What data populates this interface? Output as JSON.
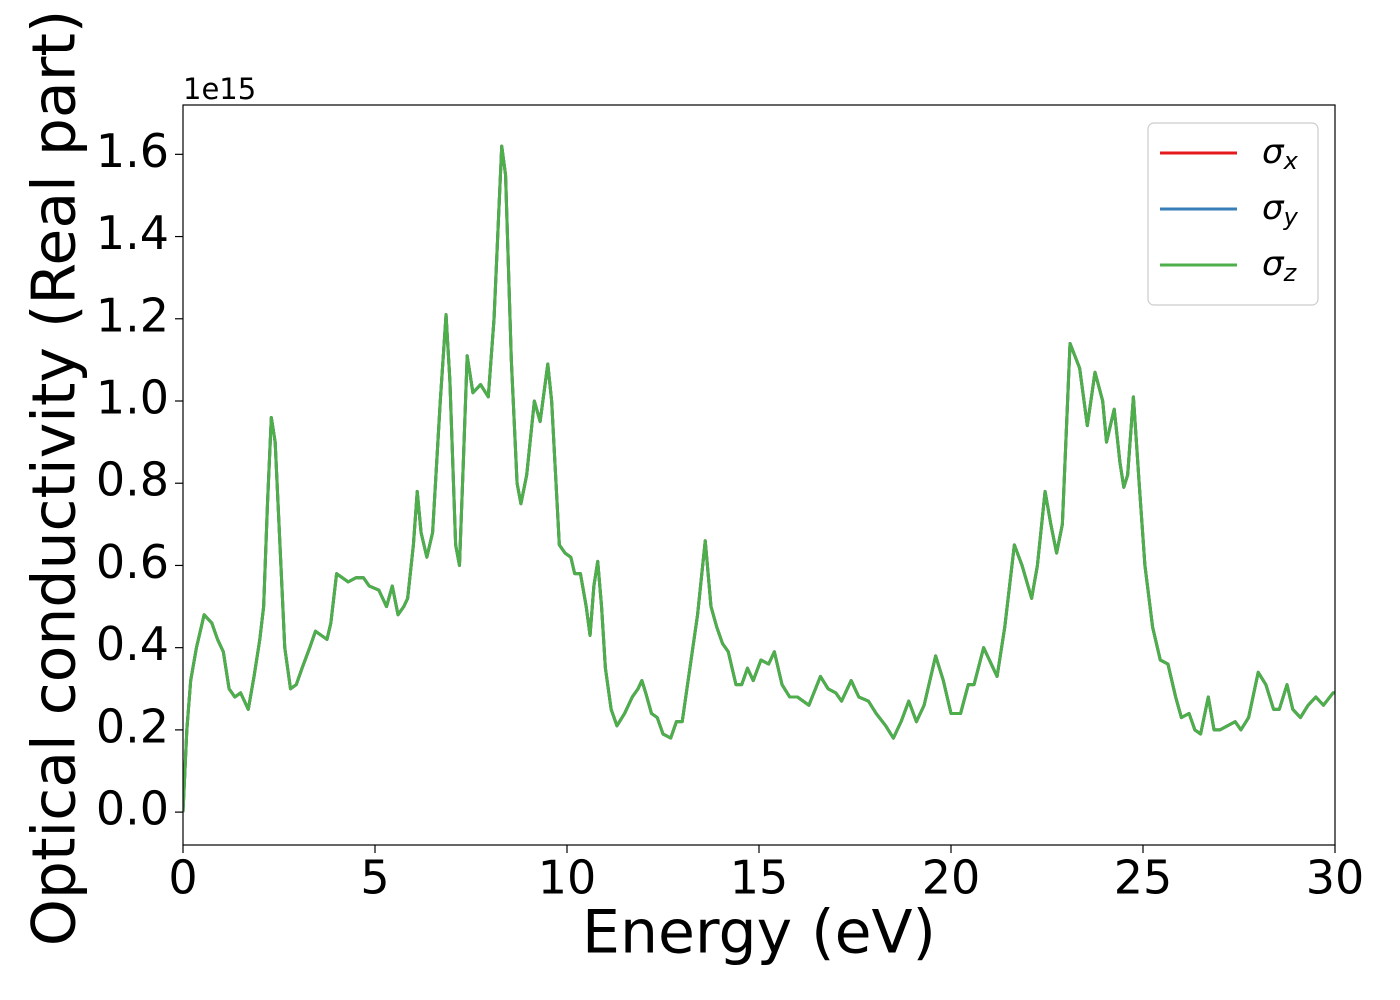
{
  "chart_data": {
    "type": "line",
    "x_label": "Energy (eV)",
    "y_label": "Optical conductivity (Real part)",
    "y_offset_label": "1e15",
    "xlim": [
      0,
      30
    ],
    "ylim": [
      -0.08,
      1.72
    ],
    "xticks": [
      0,
      5,
      10,
      15,
      20,
      25,
      30
    ],
    "yticks": [
      {
        "value": 0,
        "label": "0.0"
      },
      0.2,
      0.4,
      0.6,
      0.8,
      {
        "value": 1,
        "label": "1.0"
      },
      1.2,
      1.4,
      1.6
    ],
    "legend": "upper right",
    "x": [
      0,
      0.1,
      0.2,
      0.35,
      0.55,
      0.75,
      0.9,
      1.05,
      1.2,
      1.35,
      1.5,
      1.6,
      1.7,
      1.85,
      2.0,
      2.1,
      2.2,
      2.3,
      2.4,
      2.5,
      2.65,
      2.8,
      2.95,
      3.1,
      3.3,
      3.45,
      3.6,
      3.75,
      3.85,
      4.0,
      4.15,
      4.3,
      4.5,
      4.7,
      4.85,
      5.1,
      5.3,
      5.45,
      5.6,
      5.75,
      5.85,
      6.0,
      6.1,
      6.2,
      6.35,
      6.5,
      6.7,
      6.85,
      6.95,
      7.1,
      7.2,
      7.3,
      7.4,
      7.55,
      7.75,
      7.95,
      8.1,
      8.3,
      8.4,
      8.55,
      8.7,
      8.8,
      8.95,
      9.15,
      9.3,
      9.5,
      9.6,
      9.8,
      9.95,
      10.1,
      10.2,
      10.35,
      10.5,
      10.6,
      10.7,
      10.8,
      10.9,
      11.0,
      11.15,
      11.3,
      11.5,
      11.7,
      11.85,
      11.95,
      12.05,
      12.2,
      12.35,
      12.5,
      12.7,
      12.85,
      13.0,
      13.2,
      13.4,
      13.6,
      13.75,
      13.9,
      14.05,
      14.2,
      14.4,
      14.55,
      14.7,
      14.85,
      15.05,
      15.25,
      15.4,
      15.6,
      15.8,
      16.0,
      16.3,
      16.6,
      16.8,
      17.0,
      17.15,
      17.4,
      17.6,
      17.85,
      18.05,
      18.3,
      18.5,
      18.7,
      18.9,
      19.1,
      19.3,
      19.6,
      19.8,
      20.0,
      20.25,
      20.45,
      20.6,
      20.85,
      21.0,
      21.2,
      21.4,
      21.65,
      21.85,
      22.1,
      22.25,
      22.45,
      22.6,
      22.75,
      22.9,
      23.1,
      23.35,
      23.55,
      23.75,
      23.95,
      24.05,
      24.25,
      24.4,
      24.5,
      24.6,
      24.75,
      24.9,
      25.05,
      25.25,
      25.45,
      25.65,
      25.85,
      26.0,
      26.2,
      26.35,
      26.5,
      26.7,
      26.85,
      27.0,
      27.2,
      27.4,
      27.55,
      27.75,
      28.0,
      28.2,
      28.4,
      28.55,
      28.75,
      28.9,
      29.1,
      29.3,
      29.5,
      29.7,
      29.95,
      30.0
    ],
    "series": [
      {
        "name": "σx",
        "color": "#e41a1c",
        "values": [
          0,
          0.2,
          0.32,
          0.4,
          0.48,
          0.46,
          0.42,
          0.39,
          0.3,
          0.28,
          0.29,
          0.27,
          0.25,
          0.33,
          0.42,
          0.5,
          0.75,
          0.96,
          0.9,
          0.7,
          0.4,
          0.3,
          0.31,
          0.35,
          0.4,
          0.44,
          0.43,
          0.42,
          0.46,
          0.58,
          0.57,
          0.56,
          0.57,
          0.57,
          0.55,
          0.54,
          0.5,
          0.55,
          0.48,
          0.5,
          0.52,
          0.65,
          0.78,
          0.68,
          0.62,
          0.68,
          1.0,
          1.21,
          1.05,
          0.65,
          0.6,
          0.85,
          1.11,
          1.02,
          1.04,
          1.01,
          1.2,
          1.62,
          1.55,
          1.1,
          0.8,
          0.75,
          0.82,
          1.0,
          0.95,
          1.09,
          1.0,
          0.65,
          0.63,
          0.62,
          0.58,
          0.58,
          0.5,
          0.43,
          0.55,
          0.61,
          0.5,
          0.35,
          0.25,
          0.21,
          0.24,
          0.28,
          0.3,
          0.32,
          0.29,
          0.24,
          0.23,
          0.19,
          0.18,
          0.22,
          0.22,
          0.35,
          0.48,
          0.66,
          0.5,
          0.45,
          0.41,
          0.39,
          0.31,
          0.31,
          0.35,
          0.32,
          0.37,
          0.36,
          0.39,
          0.31,
          0.28,
          0.28,
          0.26,
          0.33,
          0.3,
          0.29,
          0.27,
          0.32,
          0.28,
          0.27,
          0.24,
          0.21,
          0.18,
          0.22,
          0.27,
          0.22,
          0.26,
          0.38,
          0.32,
          0.24,
          0.24,
          0.31,
          0.31,
          0.4,
          0.37,
          0.33,
          0.45,
          0.65,
          0.6,
          0.52,
          0.6,
          0.78,
          0.7,
          0.63,
          0.7,
          1.14,
          1.08,
          0.94,
          1.07,
          1.0,
          0.9,
          0.98,
          0.85,
          0.79,
          0.82,
          1.01,
          0.8,
          0.6,
          0.45,
          0.37,
          0.36,
          0.28,
          0.23,
          0.24,
          0.2,
          0.19,
          0.28,
          0.2,
          0.2,
          0.21,
          0.22,
          0.2,
          0.23,
          0.34,
          0.31,
          0.25,
          0.25,
          0.31,
          0.25,
          0.23,
          0.26,
          0.28,
          0.26,
          0.29,
          0.29
        ]
      },
      {
        "name": "σy",
        "color": "#377eb8",
        "values": [
          0,
          0.2,
          0.32,
          0.4,
          0.48,
          0.46,
          0.42,
          0.39,
          0.3,
          0.28,
          0.29,
          0.27,
          0.25,
          0.33,
          0.42,
          0.5,
          0.75,
          0.96,
          0.9,
          0.7,
          0.4,
          0.3,
          0.31,
          0.35,
          0.4,
          0.44,
          0.43,
          0.42,
          0.46,
          0.58,
          0.57,
          0.56,
          0.57,
          0.57,
          0.55,
          0.54,
          0.5,
          0.55,
          0.48,
          0.5,
          0.52,
          0.65,
          0.78,
          0.68,
          0.62,
          0.68,
          1.0,
          1.21,
          1.05,
          0.65,
          0.6,
          0.85,
          1.11,
          1.02,
          1.04,
          1.01,
          1.2,
          1.62,
          1.55,
          1.1,
          0.8,
          0.75,
          0.82,
          1.0,
          0.95,
          1.09,
          1.0,
          0.65,
          0.63,
          0.62,
          0.58,
          0.58,
          0.5,
          0.43,
          0.55,
          0.61,
          0.5,
          0.35,
          0.25,
          0.21,
          0.24,
          0.28,
          0.3,
          0.32,
          0.29,
          0.24,
          0.23,
          0.19,
          0.18,
          0.22,
          0.22,
          0.35,
          0.48,
          0.66,
          0.5,
          0.45,
          0.41,
          0.39,
          0.31,
          0.31,
          0.35,
          0.32,
          0.37,
          0.36,
          0.39,
          0.31,
          0.28,
          0.28,
          0.26,
          0.33,
          0.3,
          0.29,
          0.27,
          0.32,
          0.28,
          0.27,
          0.24,
          0.21,
          0.18,
          0.22,
          0.27,
          0.22,
          0.26,
          0.38,
          0.32,
          0.24,
          0.24,
          0.31,
          0.31,
          0.4,
          0.37,
          0.33,
          0.45,
          0.65,
          0.6,
          0.52,
          0.6,
          0.78,
          0.7,
          0.63,
          0.7,
          1.14,
          1.08,
          0.94,
          1.07,
          1.0,
          0.9,
          0.98,
          0.85,
          0.79,
          0.82,
          1.01,
          0.8,
          0.6,
          0.45,
          0.37,
          0.36,
          0.28,
          0.23,
          0.24,
          0.2,
          0.19,
          0.28,
          0.2,
          0.2,
          0.21,
          0.22,
          0.2,
          0.23,
          0.34,
          0.31,
          0.25,
          0.25,
          0.31,
          0.25,
          0.23,
          0.26,
          0.28,
          0.26,
          0.29,
          0.29
        ]
      },
      {
        "name": "σz",
        "color": "#4daf4a",
        "values": [
          0,
          0.2,
          0.32,
          0.4,
          0.48,
          0.46,
          0.42,
          0.39,
          0.3,
          0.28,
          0.29,
          0.27,
          0.25,
          0.33,
          0.42,
          0.5,
          0.75,
          0.96,
          0.9,
          0.7,
          0.4,
          0.3,
          0.31,
          0.35,
          0.4,
          0.44,
          0.43,
          0.42,
          0.46,
          0.58,
          0.57,
          0.56,
          0.57,
          0.57,
          0.55,
          0.54,
          0.5,
          0.55,
          0.48,
          0.5,
          0.52,
          0.65,
          0.78,
          0.68,
          0.62,
          0.68,
          1.0,
          1.21,
          1.05,
          0.65,
          0.6,
          0.85,
          1.11,
          1.02,
          1.04,
          1.01,
          1.2,
          1.62,
          1.55,
          1.1,
          0.8,
          0.75,
          0.82,
          1.0,
          0.95,
          1.09,
          1.0,
          0.65,
          0.63,
          0.62,
          0.58,
          0.58,
          0.5,
          0.43,
          0.55,
          0.61,
          0.5,
          0.35,
          0.25,
          0.21,
          0.24,
          0.28,
          0.3,
          0.32,
          0.29,
          0.24,
          0.23,
          0.19,
          0.18,
          0.22,
          0.22,
          0.35,
          0.48,
          0.66,
          0.5,
          0.45,
          0.41,
          0.39,
          0.31,
          0.31,
          0.35,
          0.32,
          0.37,
          0.36,
          0.39,
          0.31,
          0.28,
          0.28,
          0.26,
          0.33,
          0.3,
          0.29,
          0.27,
          0.32,
          0.28,
          0.27,
          0.24,
          0.21,
          0.18,
          0.22,
          0.27,
          0.22,
          0.26,
          0.38,
          0.32,
          0.24,
          0.24,
          0.31,
          0.31,
          0.4,
          0.37,
          0.33,
          0.45,
          0.65,
          0.6,
          0.52,
          0.6,
          0.78,
          0.7,
          0.63,
          0.7,
          1.14,
          1.08,
          0.94,
          1.07,
          1.0,
          0.9,
          0.98,
          0.85,
          0.79,
          0.82,
          1.01,
          0.8,
          0.6,
          0.45,
          0.37,
          0.36,
          0.28,
          0.23,
          0.24,
          0.2,
          0.19,
          0.28,
          0.2,
          0.2,
          0.21,
          0.22,
          0.2,
          0.23,
          0.34,
          0.31,
          0.25,
          0.25,
          0.31,
          0.25,
          0.23,
          0.26,
          0.28,
          0.26,
          0.29,
          0.29
        ]
      }
    ]
  }
}
